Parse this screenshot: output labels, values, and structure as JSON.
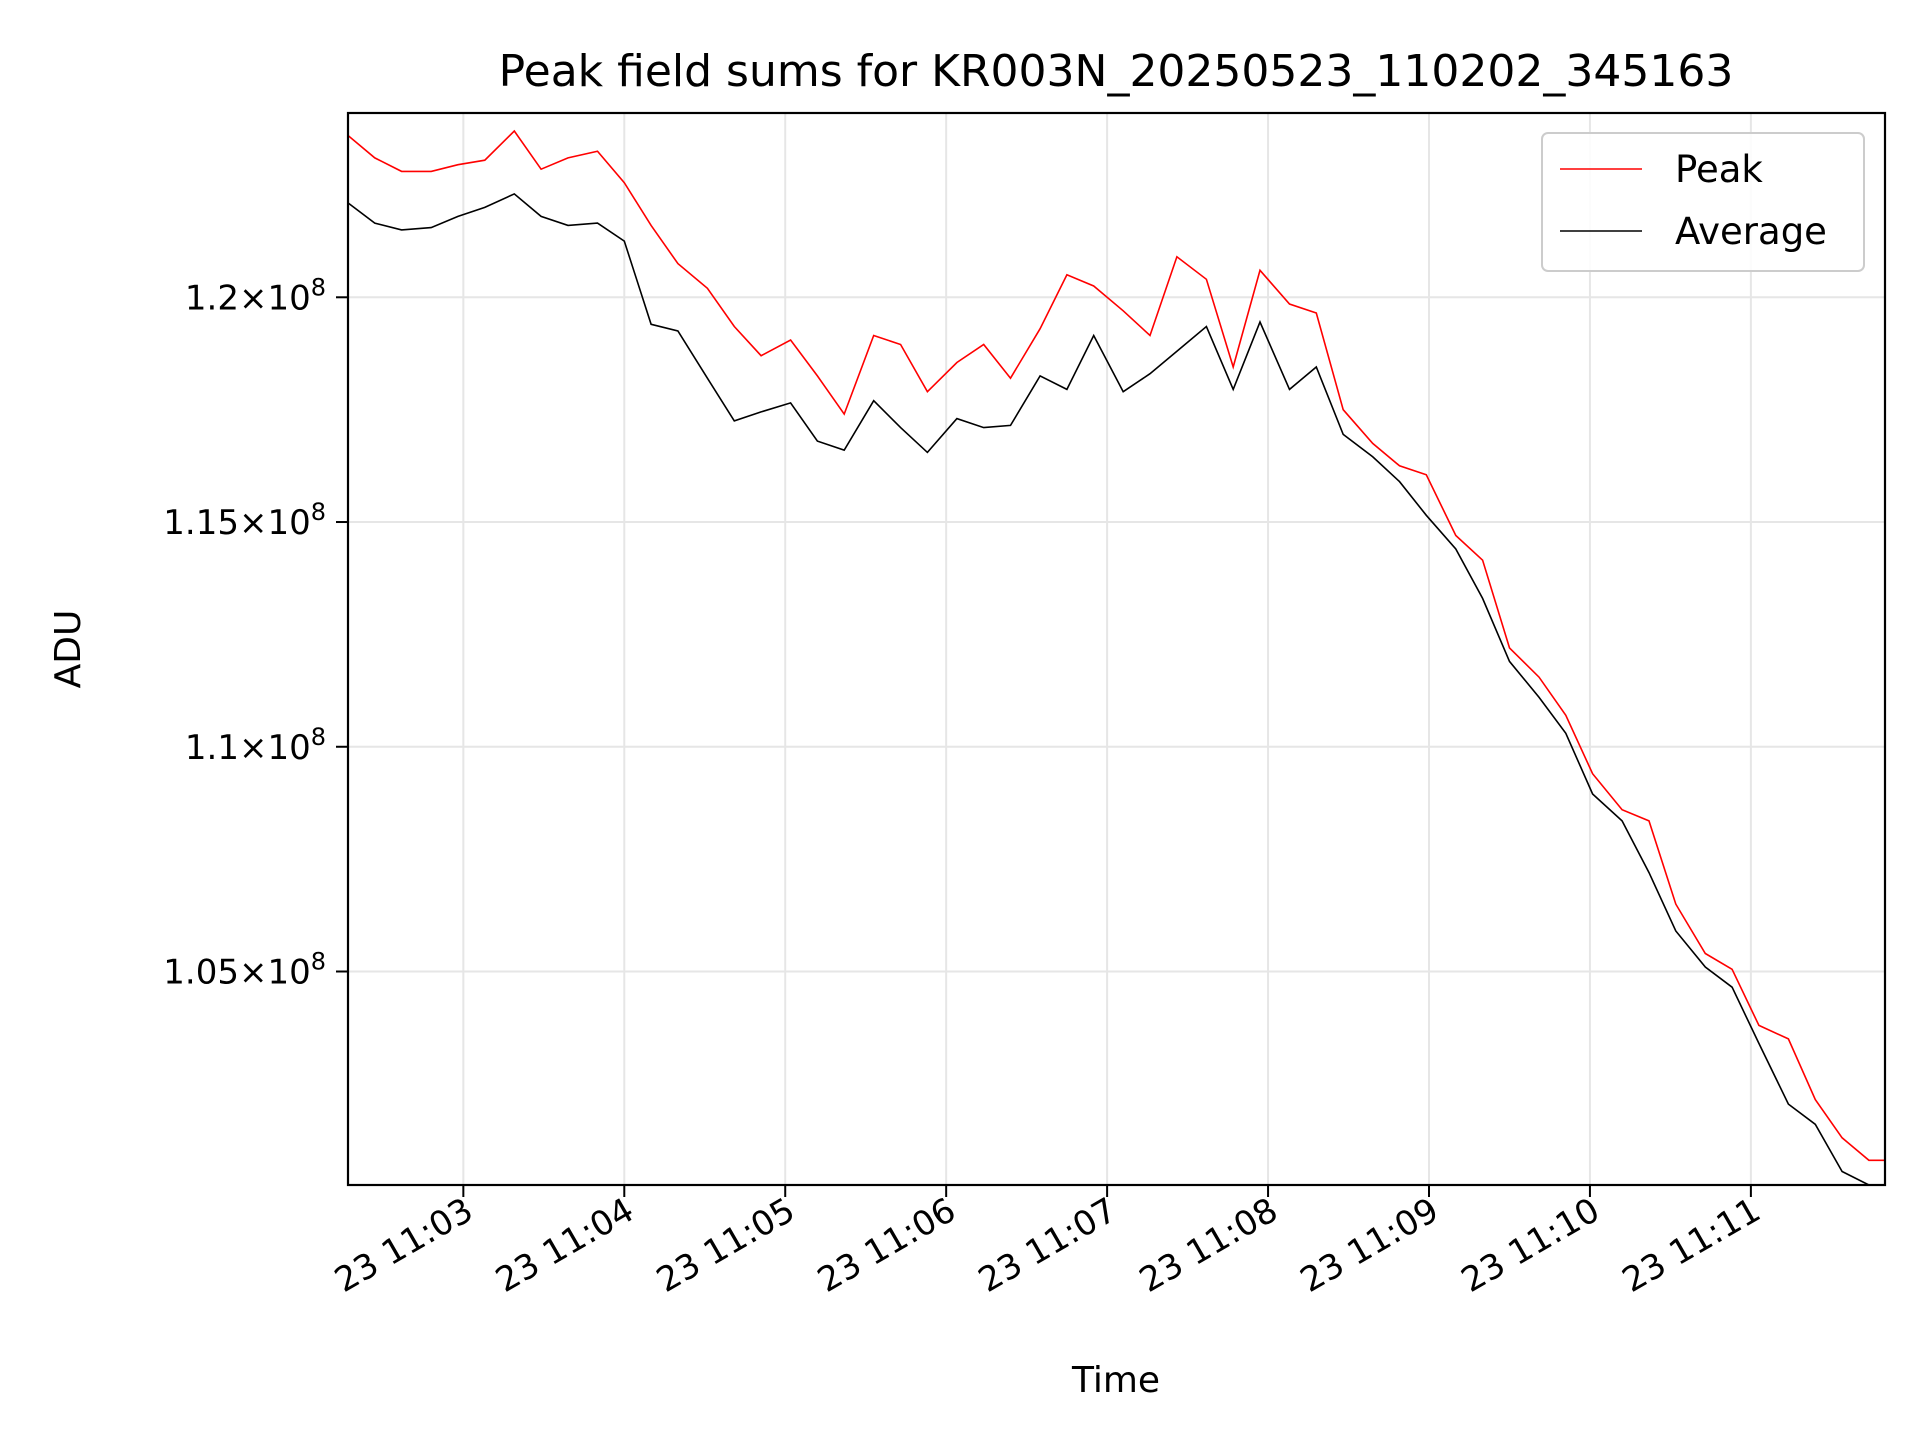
{
  "chart_data": {
    "type": "line",
    "title": "Peak field sums for KR003N_20250523_110202_345163",
    "xlabel": "Time",
    "ylabel": "ADU",
    "x_ticks": [
      "23 11:03",
      "23 11:04",
      "23 11:05",
      "23 11:06",
      "23 11:07",
      "23 11:08",
      "23 11:09",
      "23 11:10",
      "23 11:11"
    ],
    "y_ticks": [
      {
        "value": 105000000,
        "mant": "1.05",
        "exp": "8"
      },
      {
        "value": 110000000,
        "mant": "1.1",
        "exp": "8"
      },
      {
        "value": 115000000,
        "mant": "1.15",
        "exp": "8"
      },
      {
        "value": 120000000,
        "mant": "1.2",
        "exp": "8"
      }
    ],
    "xlim": [
      "2025-05-23T11:02:17",
      "2025-05-23T11:11:50"
    ],
    "ylim": [
      100250000,
      124100000
    ],
    "grid": true,
    "legend_position": "top-right",
    "x": [
      "2025-05-23T11:02:17",
      "2025-05-23T11:02:27",
      "2025-05-23T11:02:37",
      "2025-05-23T11:02:48",
      "2025-05-23T11:02:58",
      "2025-05-23T11:03:08",
      "2025-05-23T11:03:19",
      "2025-05-23T11:03:29",
      "2025-05-23T11:03:39",
      "2025-05-23T11:03:50",
      "2025-05-23T11:04:00",
      "2025-05-23T11:04:10",
      "2025-05-23T11:04:20",
      "2025-05-23T11:04:31",
      "2025-05-23T11:04:41",
      "2025-05-23T11:04:51",
      "2025-05-23T11:05:02",
      "2025-05-23T11:05:12",
      "2025-05-23T11:05:22",
      "2025-05-23T11:05:33",
      "2025-05-23T11:05:43",
      "2025-05-23T11:05:53",
      "2025-05-23T11:06:04",
      "2025-05-23T11:06:14",
      "2025-05-23T11:06:24",
      "2025-05-23T11:06:35",
      "2025-05-23T11:06:45",
      "2025-05-23T11:06:55",
      "2025-05-23T11:07:06",
      "2025-05-23T11:07:16",
      "2025-05-23T11:07:26",
      "2025-05-23T11:07:37",
      "2025-05-23T11:07:47",
      "2025-05-23T11:07:57",
      "2025-05-23T11:08:08",
      "2025-05-23T11:08:18",
      "2025-05-23T11:08:28",
      "2025-05-23T11:08:39",
      "2025-05-23T11:08:49",
      "2025-05-23T11:08:59",
      "2025-05-23T11:09:10",
      "2025-05-23T11:09:20",
      "2025-05-23T11:09:30",
      "2025-05-23T11:09:41",
      "2025-05-23T11:09:51",
      "2025-05-23T11:10:01",
      "2025-05-23T11:10:12",
      "2025-05-23T11:10:22",
      "2025-05-23T11:10:32",
      "2025-05-23T11:10:43",
      "2025-05-23T11:10:53",
      "2025-05-23T11:11:03",
      "2025-05-23T11:11:14",
      "2025-05-23T11:11:24",
      "2025-05-23T11:11:34",
      "2025-05-23T11:11:44",
      "2025-05-23T11:11:50"
    ],
    "series": [
      {
        "name": "Peak",
        "color": "#ff0000",
        "values": [
          123600000,
          123100000,
          122800000,
          122800000,
          122950000,
          123050000,
          123700000,
          122850000,
          123100000,
          123250000,
          122550000,
          121600000,
          120750000,
          120200000,
          119350000,
          118700000,
          119050000,
          118250000,
          117400000,
          119150000,
          118950000,
          117900000,
          118550000,
          118950000,
          118200000,
          119300000,
          120500000,
          120250000,
          119700000,
          119150000,
          120900000,
          120400000,
          118450000,
          120600000,
          119850000,
          119650000,
          117500000,
          116750000,
          116250000,
          116050000,
          114700000,
          114150000,
          112200000,
          111550000,
          110700000,
          109400000,
          108600000,
          108350000,
          106500000,
          105400000,
          105050000,
          103800000,
          103500000,
          102150000,
          101300000,
          100800000,
          100800000
        ]
      },
      {
        "name": "Average",
        "color": "#000000",
        "values": [
          122100000,
          121650000,
          121500000,
          121550000,
          121800000,
          122000000,
          122300000,
          121800000,
          121600000,
          121650000,
          121250000,
          119400000,
          119250000,
          118200000,
          117250000,
          117450000,
          117650000,
          116800000,
          116600000,
          117700000,
          117100000,
          116550000,
          117300000,
          117100000,
          117150000,
          118250000,
          117950000,
          119150000,
          117900000,
          118300000,
          118800000,
          119350000,
          117950000,
          119450000,
          117950000,
          118450000,
          116950000,
          116450000,
          115900000,
          115150000,
          114400000,
          113300000,
          111900000,
          111100000,
          110300000,
          108950000,
          108350000,
          107200000,
          105900000,
          105100000,
          104650000,
          103400000,
          102050000,
          101600000,
          100550000,
          100250000,
          100250000
        ]
      }
    ]
  }
}
